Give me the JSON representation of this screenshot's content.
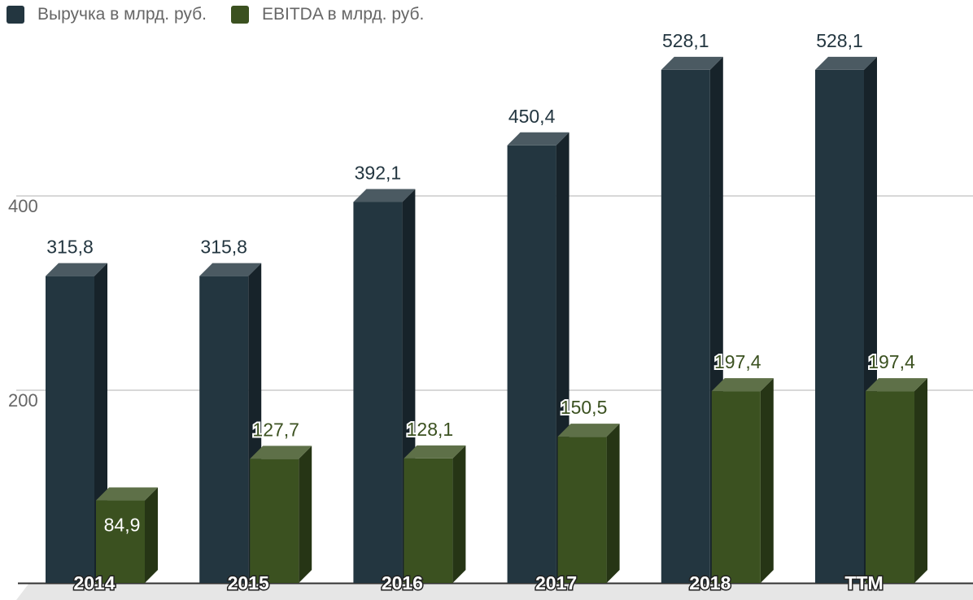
{
  "chart_data": {
    "type": "bar",
    "categories": [
      "2014",
      "2015",
      "2016",
      "2017",
      "2018",
      "TTM"
    ],
    "series": [
      {
        "name": "Выручка в млрд. руб.",
        "values": [
          315.8,
          315.8,
          392.1,
          450.4,
          528.1,
          528.1
        ],
        "labels": [
          "315,8",
          "315,8",
          "392,1",
          "450,4",
          "528,1",
          "528,1"
        ],
        "color": "#233640"
      },
      {
        "name": "EBITDA в млрд. руб.",
        "values": [
          84.9,
          127.7,
          128.1,
          150.5,
          197.4,
          197.4
        ],
        "labels": [
          "84,9",
          "127,7",
          "128,1",
          "150,5",
          "197,4",
          "197,4"
        ],
        "color": "#3b5120"
      }
    ],
    "y_ticks": [
      200,
      400
    ],
    "y_tick_labels": [
      "200",
      "400"
    ],
    "ylim": [
      0,
      600
    ],
    "grid": true,
    "legend_position": "top-left",
    "style": "3d-columns"
  }
}
